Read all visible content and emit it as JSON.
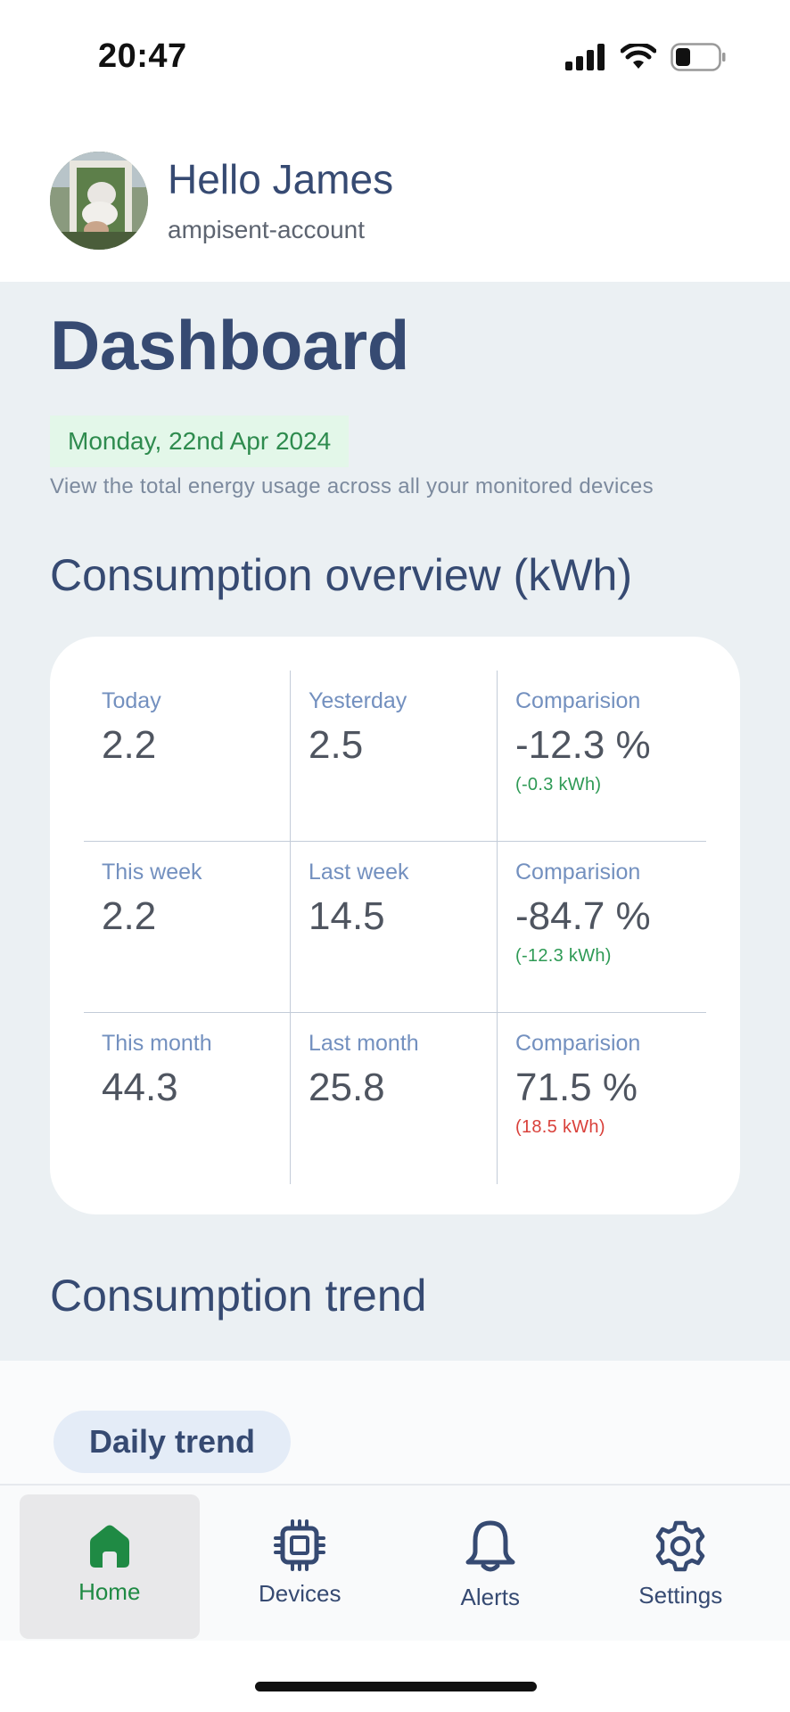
{
  "status_bar": {
    "time": "20:47"
  },
  "header": {
    "greeting": "Hello James",
    "account": "ampisent-account"
  },
  "dashboard": {
    "title": "Dashboard",
    "date": "Monday, 22nd Apr 2024",
    "description": "View the total energy usage across all your monitored devices"
  },
  "overview": {
    "title": "Consumption overview (kWh)",
    "rows": [
      {
        "current": {
          "label": "Today",
          "value": "2.2"
        },
        "previous": {
          "label": "Yesterday",
          "value": "2.5"
        },
        "comparison": {
          "label": "Comparision",
          "value": "-12.3 %",
          "delta": "(-0.3 kWh)",
          "trend": "down"
        }
      },
      {
        "current": {
          "label": "This week",
          "value": "2.2"
        },
        "previous": {
          "label": "Last week",
          "value": "14.5"
        },
        "comparison": {
          "label": "Comparision",
          "value": "-84.7 %",
          "delta": "(-12.3 kWh)",
          "trend": "down"
        }
      },
      {
        "current": {
          "label": "This month",
          "value": "44.3"
        },
        "previous": {
          "label": "Last month",
          "value": "25.8"
        },
        "comparison": {
          "label": "Comparision",
          "value": "71.5 %",
          "delta": "(18.5 kWh)",
          "trend": "up"
        }
      }
    ]
  },
  "trend": {
    "title": "Consumption trend",
    "selected_tab": "Daily trend"
  },
  "nav": {
    "items": [
      {
        "label": "Home",
        "icon": "home-icon",
        "active": true
      },
      {
        "label": "Devices",
        "icon": "chip-icon",
        "active": false
      },
      {
        "label": "Alerts",
        "icon": "bell-icon",
        "active": false
      },
      {
        "label": "Settings",
        "icon": "gear-icon",
        "active": false
      }
    ]
  },
  "colors": {
    "primary": "#364a72",
    "accent_green": "#2e9a55",
    "alert_red": "#d9403a",
    "background": "#ebf0f3"
  }
}
